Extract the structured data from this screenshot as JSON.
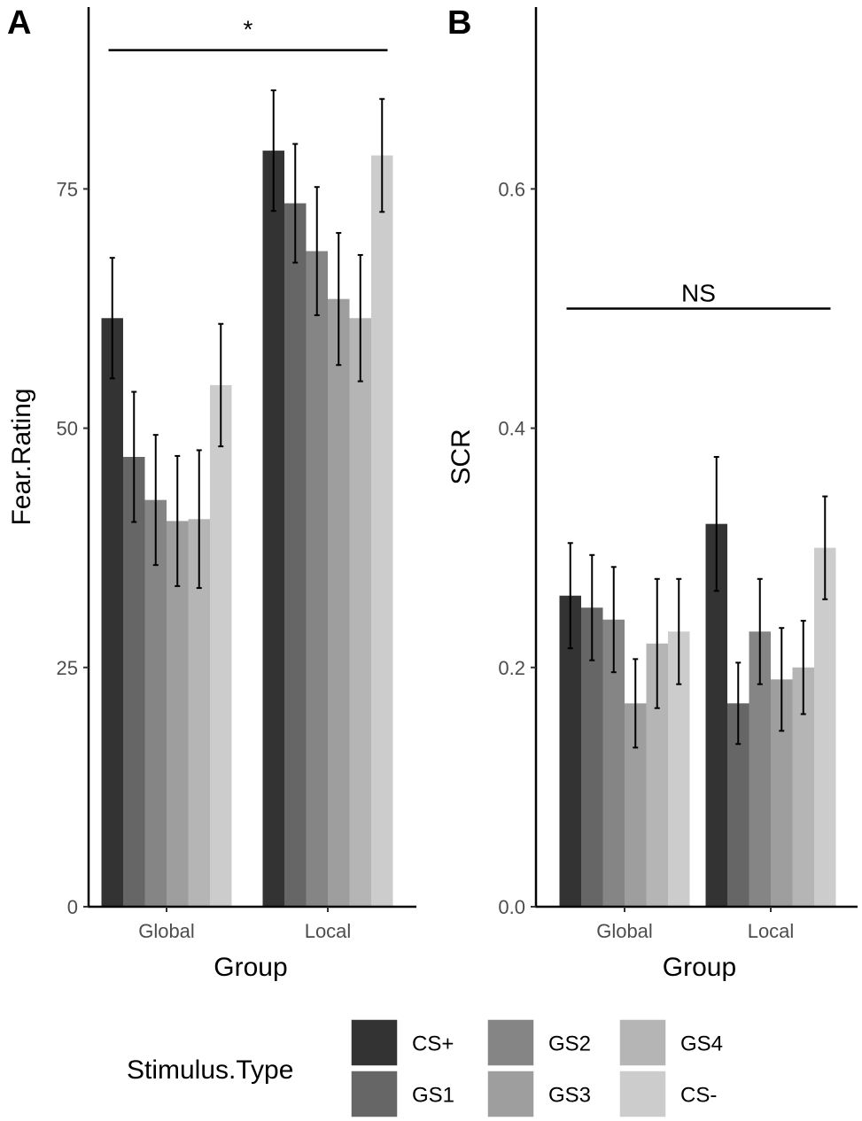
{
  "legend": {
    "title": "Stimulus.Type",
    "entries": [
      {
        "name": "CS+",
        "color": "#333333"
      },
      {
        "name": "GS1",
        "color": "#666666"
      },
      {
        "name": "GS2",
        "color": "#858585"
      },
      {
        "name": "GS3",
        "color": "#9e9e9e"
      },
      {
        "name": "GS4",
        "color": "#b5b5b5"
      },
      {
        "name": "CS-",
        "color": "#cccccc"
      }
    ]
  },
  "chart_data": [
    {
      "panel": "A",
      "type": "bar",
      "xlabel": "Group",
      "ylabel": "Fear.Rating",
      "categories": [
        "Global",
        "Local"
      ],
      "ylim": [
        0,
        94
      ],
      "yticks": [
        "0",
        "25",
        "50",
        "75"
      ],
      "ytick_values": [
        0,
        25,
        50,
        75
      ],
      "series": [
        {
          "name": "CS+",
          "values": [
            61.5,
            79.0
          ],
          "errors": [
            6.3,
            6.3
          ]
        },
        {
          "name": "GS1",
          "values": [
            47.0,
            73.5
          ],
          "errors": [
            6.8,
            6.2
          ]
        },
        {
          "name": "GS2",
          "values": [
            42.5,
            68.5
          ],
          "errors": [
            6.8,
            6.7
          ]
        },
        {
          "name": "GS3",
          "values": [
            40.3,
            63.5
          ],
          "errors": [
            6.8,
            6.9
          ]
        },
        {
          "name": "GS4",
          "values": [
            40.5,
            61.5
          ],
          "errors": [
            7.2,
            6.6
          ]
        },
        {
          "name": "CS-",
          "values": [
            54.5,
            78.5
          ],
          "errors": [
            6.4,
            5.9
          ]
        }
      ],
      "annotation": {
        "text": "*",
        "from": "Global",
        "to": "Local",
        "y": 89.5
      },
      "legend_position": "bottom"
    },
    {
      "panel": "B",
      "type": "bar",
      "xlabel": "Group",
      "ylabel": "SCR",
      "categories": [
        "Global",
        "Local"
      ],
      "ylim": [
        0,
        0.752
      ],
      "yticks": [
        "0.0",
        "0.2",
        "0.4",
        "0.6"
      ],
      "ytick_values": [
        0.0,
        0.2,
        0.4,
        0.6
      ],
      "series": [
        {
          "name": "CS+",
          "values": [
            0.26,
            0.32
          ],
          "errors": [
            0.044,
            0.056
          ]
        },
        {
          "name": "GS1",
          "values": [
            0.25,
            0.17
          ],
          "errors": [
            0.044,
            0.034
          ]
        },
        {
          "name": "GS2",
          "values": [
            0.24,
            0.23
          ],
          "errors": [
            0.044,
            0.044
          ]
        },
        {
          "name": "GS3",
          "values": [
            0.17,
            0.19
          ],
          "errors": [
            0.037,
            0.043
          ]
        },
        {
          "name": "GS4",
          "values": [
            0.22,
            0.2
          ],
          "errors": [
            0.054,
            0.039
          ]
        },
        {
          "name": "CS-",
          "values": [
            0.23,
            0.3
          ],
          "errors": [
            0.044,
            0.043
          ]
        }
      ],
      "annotation": {
        "text": "NS",
        "from": "Global",
        "to": "Local",
        "y": 0.5
      },
      "legend_position": "bottom"
    }
  ]
}
